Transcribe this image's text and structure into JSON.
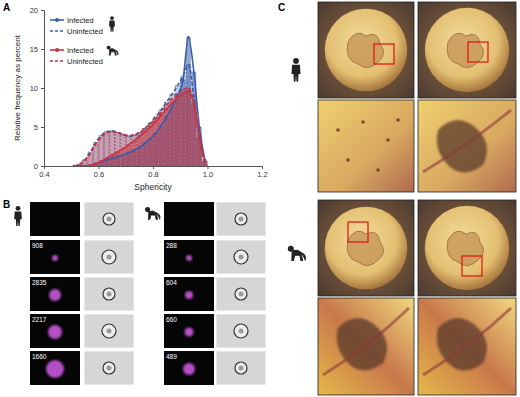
{
  "chart_data": {
    "type": "histogram",
    "x_label": "Sphericity",
    "y_label": "Relative frequency as percent",
    "bins": [
      0.5,
      0.52,
      0.54,
      0.56,
      0.58,
      0.6,
      0.62,
      0.64,
      0.66,
      0.68,
      0.7,
      0.72,
      0.74,
      0.76,
      0.78,
      0.8,
      0.82,
      0.84,
      0.86,
      0.88,
      0.9,
      0.92,
      0.94,
      0.96,
      0.98,
      1.0
    ],
    "series": [
      {
        "name": "Infected",
        "color": "#3b5ca8",
        "line_style": "solid",
        "marker": "circle",
        "values": [
          0,
          0,
          0,
          0.1,
          0.3,
          0.5,
          0.8,
          1.0,
          1.2,
          1.4,
          1.7,
          2.0,
          2.4,
          2.9,
          3.5,
          4.2,
          5.2,
          6.3,
          7.6,
          9.0,
          11.0,
          16.5,
          12.0,
          5.0,
          0.8
        ]
      },
      {
        "name": "Uninfected",
        "color": "#3b5ca8",
        "line_style": "dashed",
        "values": [
          0,
          0.2,
          0.8,
          1.8,
          3.0,
          3.9,
          4.4,
          4.5,
          4.3,
          4.0,
          3.8,
          3.9,
          4.2,
          4.8,
          5.5,
          6.3,
          7.2,
          8.2,
          9.2,
          10.3,
          11.5,
          13.0,
          9.0,
          3.5,
          0.5
        ]
      },
      {
        "name": "Infected",
        "color": "#c8343c",
        "line_style": "solid",
        "marker": "circle",
        "values": [
          0,
          0,
          0,
          0.1,
          0.3,
          0.6,
          1.0,
          1.4,
          1.8,
          2.2,
          2.7,
          3.2,
          3.8,
          4.4,
          5.0,
          5.7,
          6.5,
          7.3,
          8.1,
          8.8,
          9.3,
          9.6,
          8.0,
          4.0,
          0.6
        ]
      },
      {
        "name": "Uninfected",
        "color": "#c8343c",
        "line_style": "dashed",
        "values": [
          0,
          0.2,
          0.7,
          1.6,
          2.8,
          3.7,
          4.2,
          4.4,
          4.3,
          4.1,
          3.9,
          4.0,
          4.3,
          4.8,
          5.4,
          6.1,
          6.9,
          7.8,
          8.6,
          9.3,
          9.8,
          10.0,
          8.0,
          3.5,
          0.5
        ]
      }
    ],
    "xlim": [
      0.4,
      1.2
    ],
    "xticks": [
      0.4,
      0.6,
      0.8,
      {
        "value": 1,
        "label": "1.0"
      },
      1.2
    ],
    "ylim": [
      0,
      20
    ],
    "yticks": [
      0,
      5,
      10,
      15,
      20
    ],
    "grid": false,
    "legend": "top-left"
  },
  "panel_labels": [
    "A",
    "B",
    "C"
  ],
  "panel_b": {
    "human": [
      908,
      2835,
      2217,
      1660
    ],
    "monkey": [
      288,
      604,
      660,
      489
    ]
  }
}
